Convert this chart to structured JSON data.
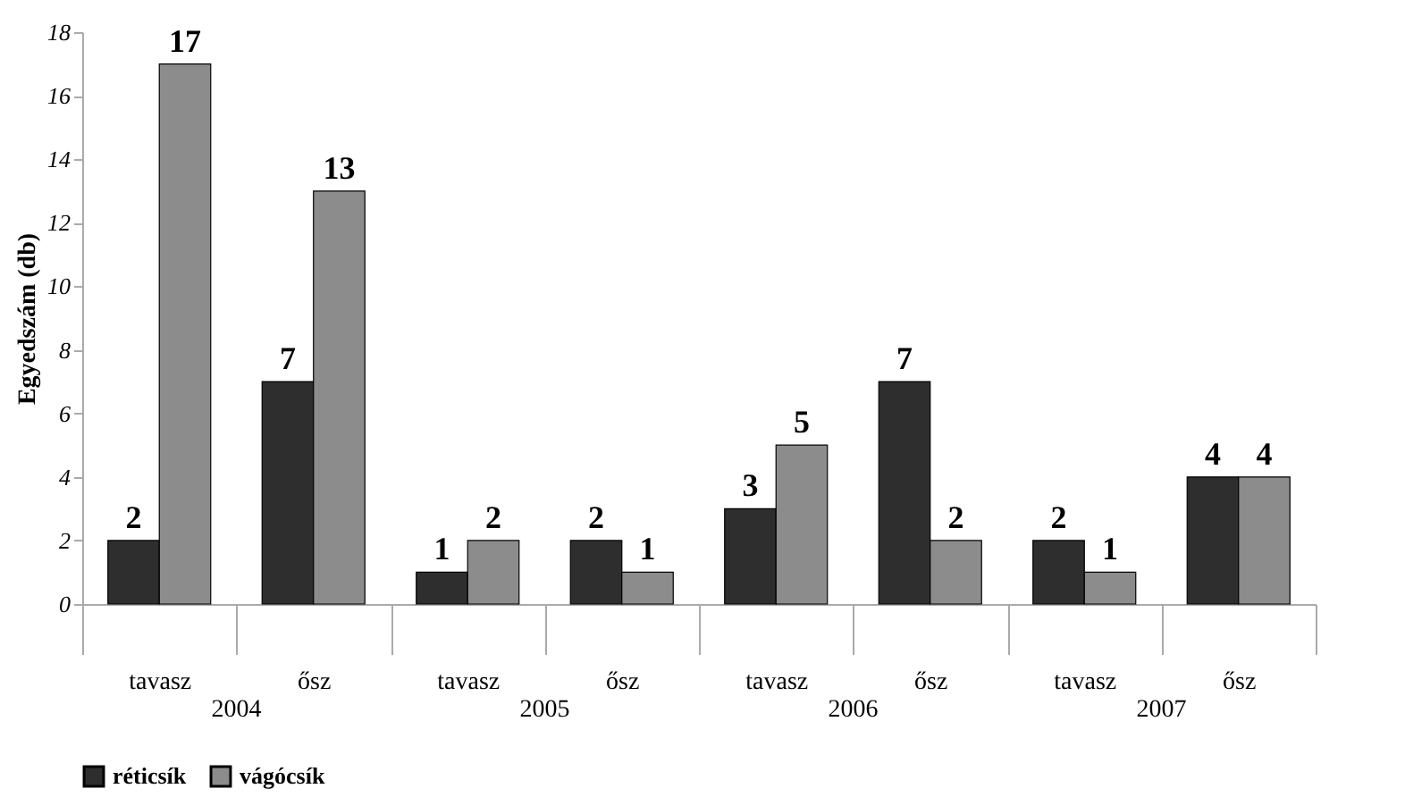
{
  "chart_data": {
    "type": "bar",
    "ylabel": "Egyedszám (db)",
    "categories": [
      "tavasz",
      "ősz",
      "tavasz",
      "ősz",
      "tavasz",
      "ősz",
      "tavasz",
      "ősz"
    ],
    "series": [
      {
        "name": "réticsík",
        "color": "#2e2e2e",
        "values": [
          2,
          7,
          1,
          2,
          3,
          7,
          2,
          4
        ]
      },
      {
        "name": "vágócsík",
        "color": "#8c8c8c",
        "values": [
          17,
          13,
          2,
          1,
          5,
          2,
          1,
          4
        ]
      }
    ],
    "ylim": [
      0,
      18
    ],
    "yticks": [
      0,
      2,
      4,
      6,
      8,
      10,
      12,
      14,
      16,
      18
    ],
    "grid": false,
    "legend": "bottom",
    "data_labels": true,
    "annotations": [
      "2004",
      "2005",
      "2006",
      "2007"
    ]
  }
}
